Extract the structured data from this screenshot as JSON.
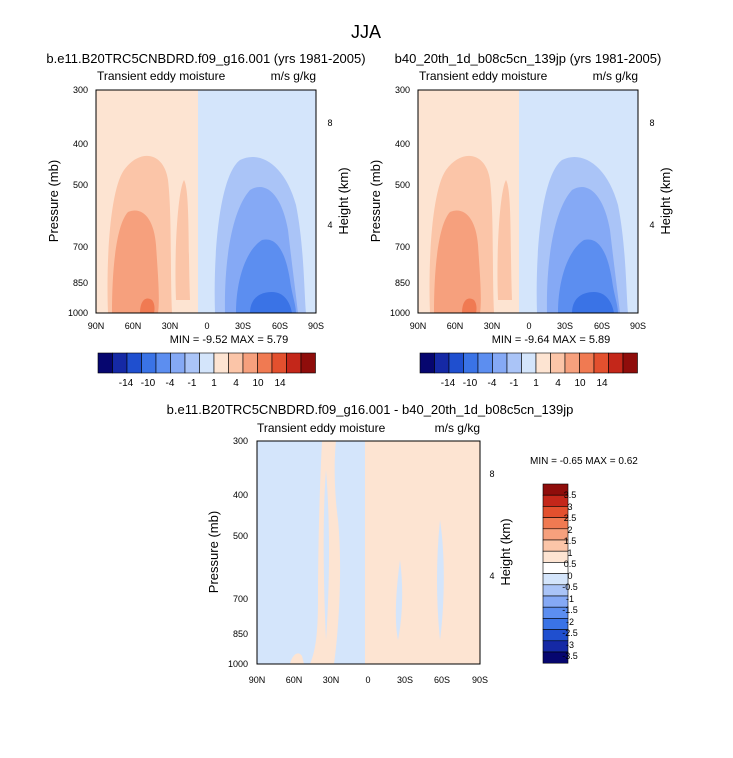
{
  "figure_title": "JJA",
  "chart_data": [
    {
      "type": "heatmap",
      "title": "b.e11.B20TRC5CNBDRD.f09_g16.001 (yrs 1981-2005)",
      "subtitle_left": "Transient eddy moisture",
      "units": "m/s g/kg",
      "ylabel": "Pressure (mb)",
      "ylabel_right": "Height (km)",
      "x_ticks": [
        "90N",
        "60N",
        "30N",
        "0",
        "30S",
        "60S",
        "90S"
      ],
      "y_ticks": [
        "300",
        "400",
        "500",
        "700",
        "850",
        "1000"
      ],
      "y_ticks_right": [
        "8",
        "4"
      ],
      "min_label": "MIN = -9.52  MAX =  5.79",
      "min": -9.52,
      "max": 5.79,
      "colorbar_labels": [
        "-14",
        "-10",
        "-4",
        "-1",
        "1",
        "4",
        "10",
        "14"
      ]
    },
    {
      "type": "heatmap",
      "title": "b40_20th_1d_b08c5cn_139jp (yrs 1981-2005)",
      "subtitle_left": "Transient eddy moisture",
      "units": "m/s g/kg",
      "ylabel": "Pressure (mb)",
      "ylabel_right": "Height (km)",
      "x_ticks": [
        "90N",
        "60N",
        "30N",
        "0",
        "30S",
        "60S",
        "90S"
      ],
      "y_ticks": [
        "300",
        "400",
        "500",
        "700",
        "850",
        "1000"
      ],
      "y_ticks_right": [
        "8",
        "4"
      ],
      "min_label": "MIN = -9.64  MAX =  5.89",
      "min": -9.64,
      "max": 5.89,
      "colorbar_labels": [
        "-14",
        "-10",
        "-4",
        "-1",
        "1",
        "4",
        "10",
        "14"
      ]
    },
    {
      "type": "heatmap",
      "title": "b.e11.B20TRC5CNBDRD.f09_g16.001 - b40_20th_1d_b08c5cn_139jp",
      "subtitle_left": "Transient eddy moisture",
      "units": "m/s g/kg",
      "ylabel": "Pressure (mb)",
      "ylabel_right": "Height (km)",
      "x_ticks": [
        "90N",
        "60N",
        "30N",
        "0",
        "30S",
        "60S",
        "90S"
      ],
      "y_ticks": [
        "300",
        "400",
        "500",
        "700",
        "850",
        "1000"
      ],
      "y_ticks_right": [
        "8",
        "4"
      ],
      "min_label": "MIN = -0.65  MAX =  0.62",
      "min": -0.65,
      "max": 0.62,
      "colorbar_labels": [
        "3.5",
        "3",
        "2.5",
        "2",
        "1.5",
        "1",
        "0.5",
        "0",
        "-0.5",
        "-1",
        "-1.5",
        "-2",
        "-2.5",
        "-3",
        "-3.5"
      ]
    }
  ],
  "colors": {
    "main_scale": [
      "#06066f",
      "#1529a5",
      "#1f4fcf",
      "#3a73e6",
      "#5c8ef0",
      "#85a9f5",
      "#aac4f7",
      "#d4e5fb",
      "#fde4d2",
      "#fbc5a8",
      "#f6a07d",
      "#f07a52",
      "#e3502e",
      "#c4271a",
      "#8f0d0b"
    ],
    "diff_scale": [
      "#8f0d0b",
      "#c4271a",
      "#e3502e",
      "#f07a52",
      "#f6a07d",
      "#fbc5a8",
      "#fde4d2",
      "#ffffff",
      "#d4e5fb",
      "#aac4f7",
      "#85a9f5",
      "#5c8ef0",
      "#3a73e6",
      "#1f4fcf",
      "#1529a5",
      "#06066f"
    ]
  }
}
